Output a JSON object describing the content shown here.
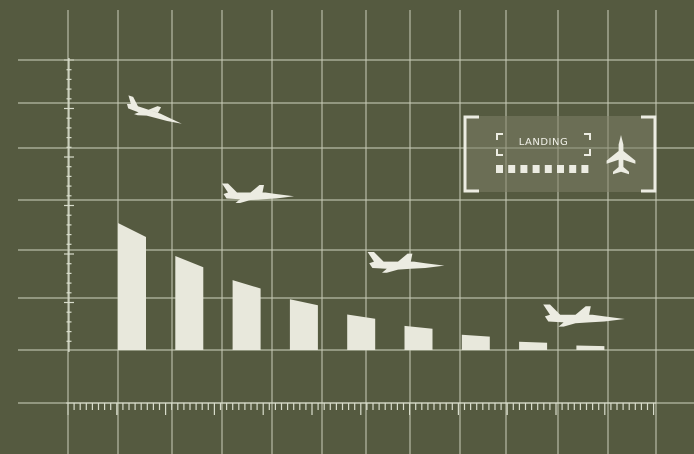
{
  "colors": {
    "background": "#555a40",
    "grid": "#c9cdb8",
    "accent": "#ecece2"
  },
  "status_panel": {
    "label": "LANDING",
    "progress_segments_total": 8,
    "progress_segments_filled": 8,
    "icon": "fighter-jet-topdown-icon"
  },
  "altitude_bars": [
    1.0,
    0.74,
    0.55,
    0.4,
    0.28,
    0.19,
    0.12,
    0.065,
    0.035
  ],
  "aircraft": [
    {
      "icon": "fighter-jet-icon",
      "heading": "descending"
    },
    {
      "icon": "fighter-jet-icon",
      "heading": "descending"
    },
    {
      "icon": "fighter-jet-icon",
      "heading": "descending"
    },
    {
      "icon": "fighter-jet-icon",
      "heading": "landing"
    }
  ]
}
